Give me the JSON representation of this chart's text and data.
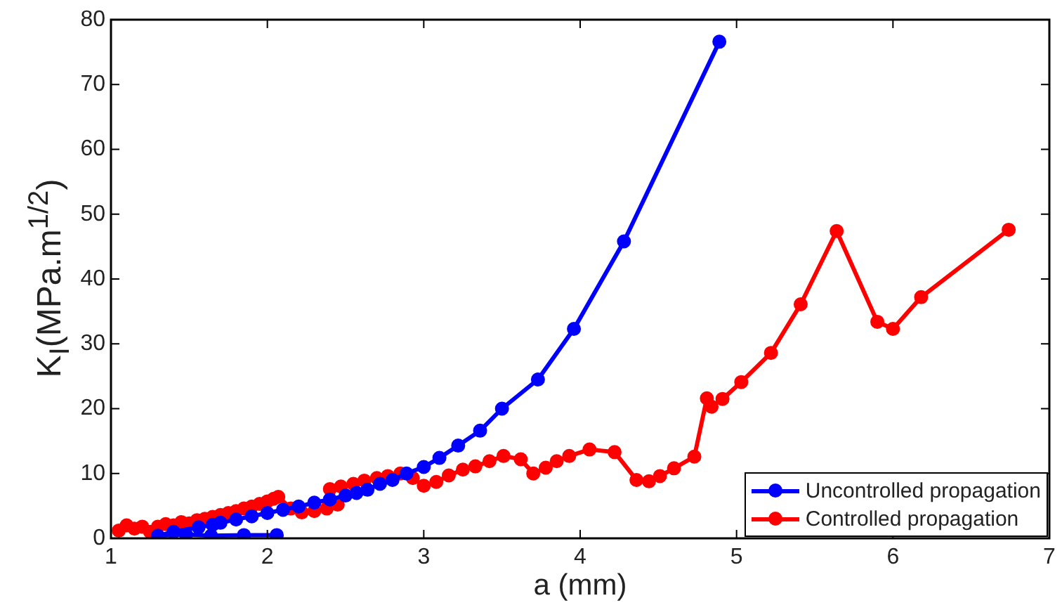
{
  "chart_data": {
    "type": "line",
    "xlabel": "a (mm)",
    "ylabel": "K$_{I}$(MPa.m$^{1/2}$)",
    "xlim": [
      1,
      7
    ],
    "xticks": [
      1,
      2,
      3,
      4,
      5,
      6,
      7
    ],
    "ylim": [
      0,
      80
    ],
    "yticks": [
      0,
      10,
      20,
      30,
      40,
      50,
      60,
      70,
      80
    ],
    "grid": false,
    "legend": "bottom right",
    "marker": "circle",
    "line_style": "solid",
    "series": [
      {
        "name": "Uncontrolled propagation",
        "color": "#0000ff",
        "x": [
          2.06,
          1.85,
          1.64,
          1.48,
          1.3,
          1.4,
          1.56,
          1.65,
          1.7,
          1.8,
          1.9,
          2.0,
          2.1,
          2.2,
          2.3,
          2.4,
          2.5,
          2.57,
          2.64,
          2.72,
          2.8,
          2.89,
          3.0,
          3.1,
          3.22,
          3.36,
          3.5,
          3.73,
          3.96,
          4.28,
          4.89
        ],
        "values": [
          0.5,
          0.5,
          0.4,
          0.6,
          0.4,
          1.0,
          1.7,
          2.1,
          2.4,
          2.9,
          3.4,
          3.9,
          4.4,
          4.9,
          5.5,
          6.0,
          6.6,
          7.0,
          7.5,
          8.4,
          9.0,
          10.0,
          11.0,
          12.4,
          14.3,
          16.6,
          20.0,
          24.5,
          32.3,
          45.8,
          76.6
        ]
      },
      {
        "name": "Controlled propagation",
        "color": "#ff0000",
        "x": [
          1.05,
          1.1,
          1.15,
          1.2,
          1.25,
          1.3,
          1.35,
          1.4,
          1.45,
          1.5,
          1.55,
          1.6,
          1.65,
          1.7,
          1.75,
          1.8,
          1.85,
          1.9,
          1.95,
          2.0,
          2.04,
          2.07,
          2.15,
          2.22,
          2.3,
          2.38,
          2.45,
          2.4,
          2.47,
          2.55,
          2.62,
          2.7,
          2.77,
          2.85,
          2.93,
          3.0,
          3.08,
          3.16,
          3.25,
          3.33,
          3.42,
          3.51,
          3.62,
          3.7,
          3.78,
          3.85,
          3.93,
          4.06,
          4.22,
          4.36,
          4.44,
          4.51,
          4.6,
          4.73,
          4.81,
          4.84,
          4.91,
          5.03,
          5.22,
          5.41,
          5.64,
          5.9,
          6.0,
          6.18,
          6.74
        ],
        "values": [
          1.2,
          2.0,
          1.5,
          1.8,
          1.0,
          1.8,
          2.2,
          2.0,
          2.5,
          2.3,
          2.8,
          3.0,
          3.3,
          3.6,
          3.9,
          4.2,
          4.6,
          4.9,
          5.3,
          5.7,
          6.1,
          6.4,
          4.6,
          4.0,
          4.2,
          4.6,
          5.2,
          7.6,
          8.0,
          8.4,
          8.9,
          9.3,
          9.6,
          10.0,
          9.3,
          8.1,
          8.7,
          9.7,
          10.6,
          11.1,
          11.9,
          12.7,
          12.2,
          10.0,
          10.9,
          11.9,
          12.7,
          13.7,
          13.3,
          9.0,
          8.8,
          9.6,
          10.8,
          12.6,
          21.6,
          20.3,
          21.5,
          24.1,
          28.6,
          36.1,
          47.4,
          33.4,
          32.3,
          37.2,
          47.6
        ]
      }
    ]
  }
}
